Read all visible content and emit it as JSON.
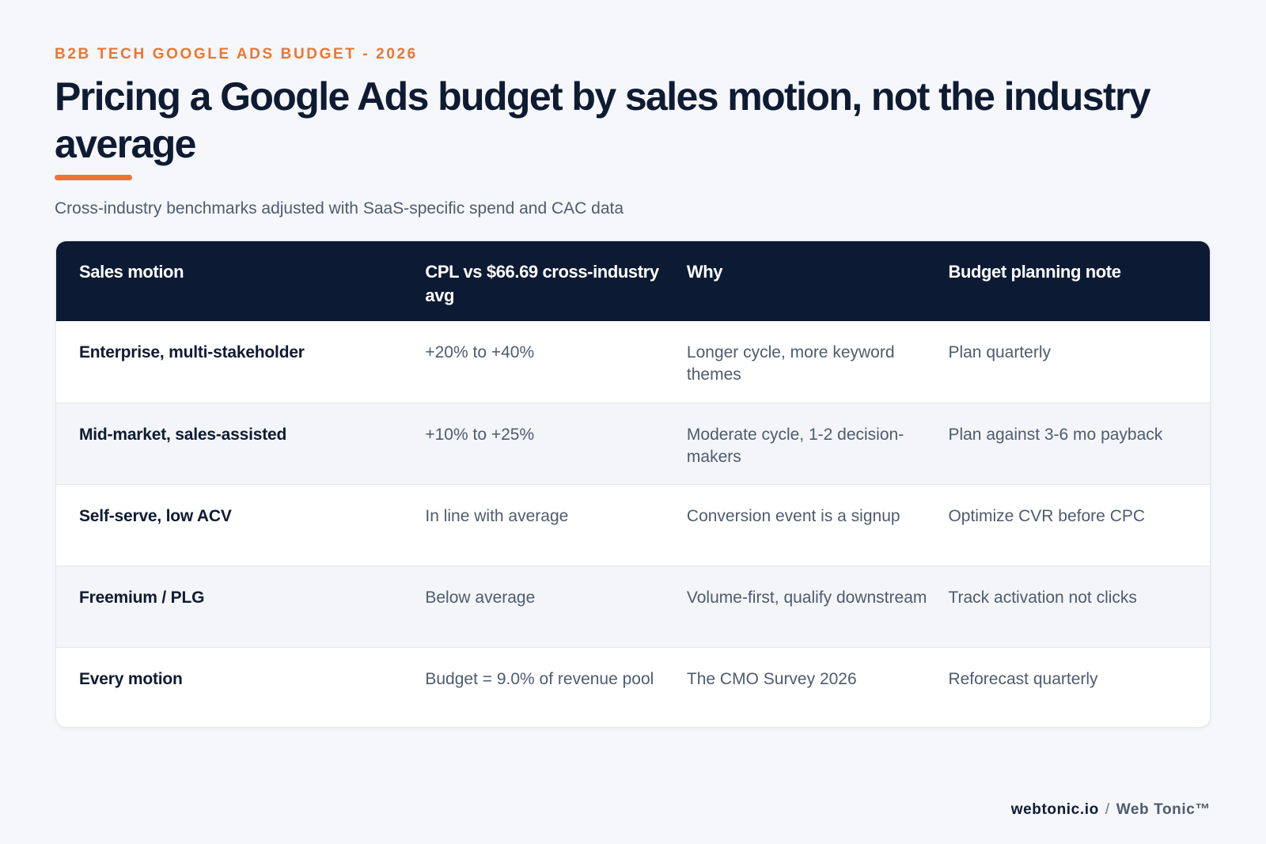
{
  "eyebrow": "B2B TECH GOOGLE ADS BUDGET - 2026",
  "title": "Pricing a Google Ads budget by sales motion, not the industry average",
  "subtitle": "Cross-industry benchmarks adjusted with SaaS-specific spend and CAC data",
  "colors": {
    "accent": "#f07431",
    "header_bg": "#0d1a33",
    "text_dark": "#0f1b33",
    "text_muted": "#4f5b6e",
    "page_bg": "#f5f7fa"
  },
  "table": {
    "headers": [
      "Sales motion",
      "CPL vs $66.69 cross-industry avg",
      "Why",
      "Budget planning note"
    ],
    "rows": [
      [
        "Enterprise, multi-stakeholder",
        "+20% to +40%",
        "Longer cycle, more keyword themes",
        "Plan quarterly"
      ],
      [
        "Mid-market, sales-assisted",
        "+10% to +25%",
        "Moderate cycle, 1-2 decision-makers",
        "Plan against 3-6 mo payback"
      ],
      [
        "Self-serve, low ACV",
        "In line with average",
        "Conversion event is a signup",
        "Optimize CVR before CPC"
      ],
      [
        "Freemium / PLG",
        "Below average",
        "Volume-first, qualify downstream",
        "Track activation not clicks"
      ],
      [
        "Every motion",
        "Budget = 9.0% of revenue pool",
        "The CMO Survey 2026",
        "Reforecast quarterly"
      ]
    ]
  },
  "footer": {
    "site": "webtonic.io",
    "separator": "/",
    "brand": "Web Tonic™"
  }
}
